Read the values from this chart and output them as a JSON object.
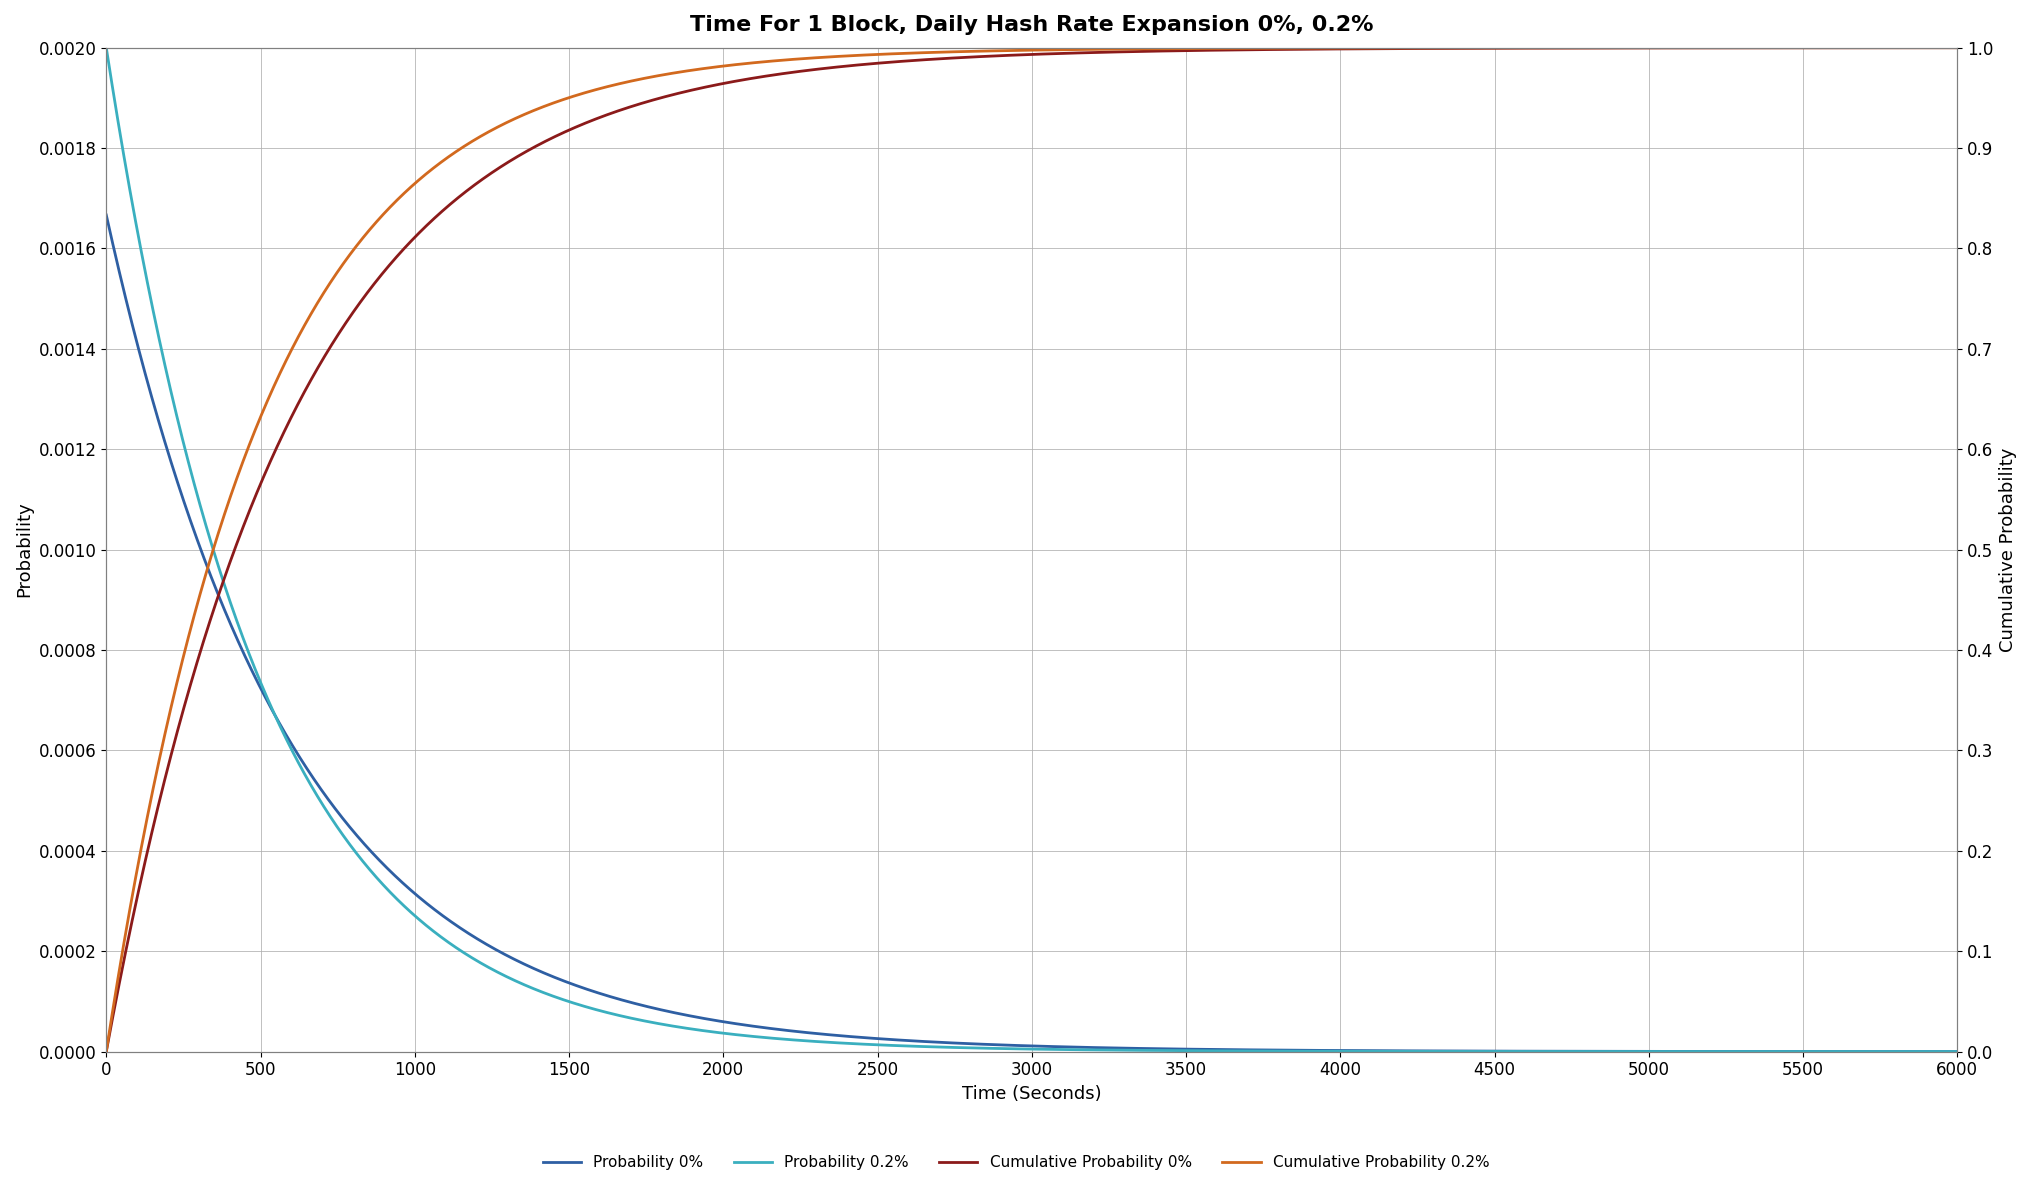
{
  "title": "Time For 1 Block, Daily Hash Rate Expansion 0%, 0.2%",
  "xlabel": "Time (Seconds)",
  "ylabel_left": "Probability",
  "ylabel_right": "Cumulative Probability",
  "xlim": [
    0,
    6000
  ],
  "ylim_left": [
    0,
    0.002
  ],
  "ylim_right": [
    0,
    1
  ],
  "yticks_left": [
    0,
    0.0002,
    0.0004,
    0.0006,
    0.0008,
    0.001,
    0.0012,
    0.0014,
    0.0016,
    0.0018,
    0.002
  ],
  "yticks_right": [
    0,
    0.1,
    0.2,
    0.3,
    0.4,
    0.5,
    0.6,
    0.7,
    0.8,
    0.9,
    1.0
  ],
  "xticks": [
    0,
    500,
    1000,
    1500,
    2000,
    2500,
    3000,
    3500,
    4000,
    4500,
    5000,
    5500,
    6000
  ],
  "color_prob_0": "#2E5FA3",
  "color_prob_02": "#3AAFBF",
  "color_cum_0": "#8B1A1A",
  "color_cum_02": "#D2691E",
  "mean_block_time_0": 600,
  "mean_block_time_02": 500,
  "growth_rate_pct": 0.2,
  "n_points": 6001,
  "figsize": [
    20.32,
    12.02
  ],
  "dpi": 100,
  "legend_labels": [
    "Probability 0%",
    "Probability 0.2%",
    "Cumulative Probability 0%",
    "Cumulative Probability 0.2%"
  ],
  "background_color": "#ffffff",
  "grid_color": "#b0b0b0",
  "title_fontsize": 16,
  "label_fontsize": 13,
  "tick_fontsize": 12,
  "legend_fontsize": 11
}
